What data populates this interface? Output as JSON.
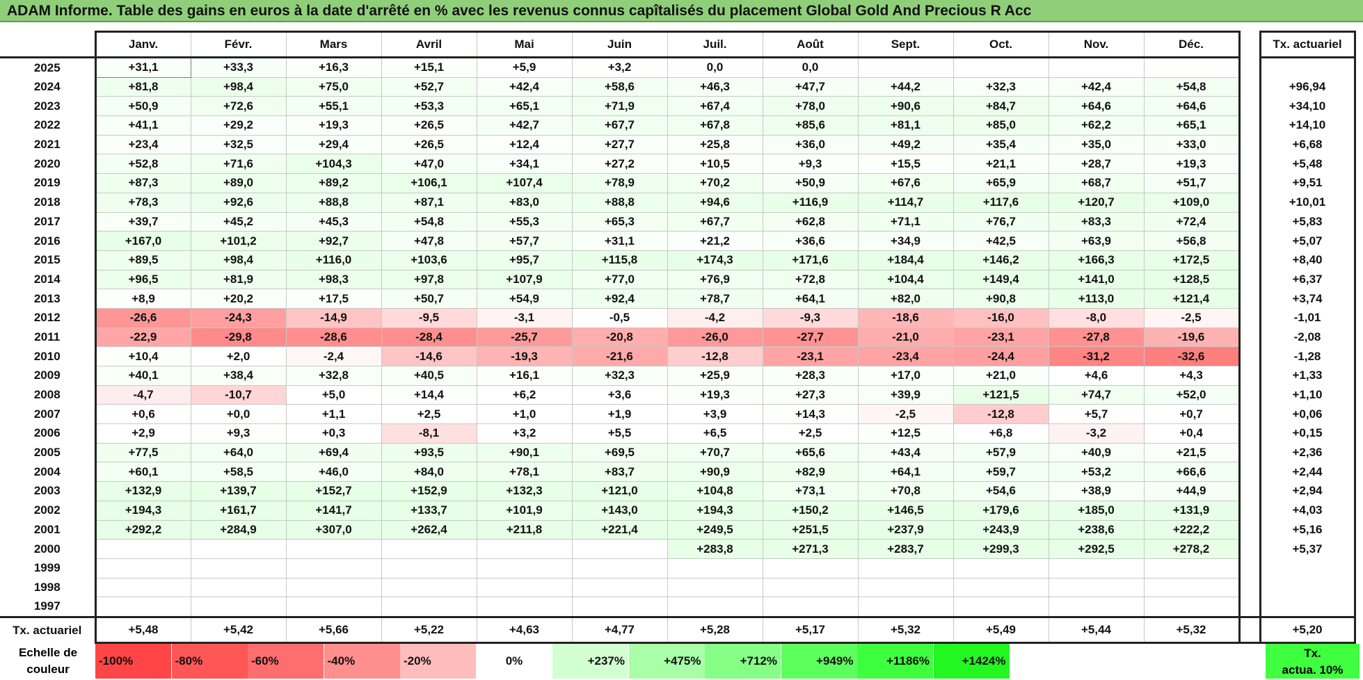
{
  "title": "ADAM Informe. Table des gains en euros à la date d'arrêté en % avec les revenus connus capîtalisés du placement Global Gold And Precious R Acc",
  "months": [
    "Janv.",
    "Févr.",
    "Mars",
    "Avril",
    "Mai",
    "Juin",
    "Juil.",
    "Août",
    "Sept.",
    "Oct.",
    "Nov.",
    "Déc."
  ],
  "annual_header": "Tx. actuariel",
  "rows": [
    {
      "year": "2025",
      "cells": [
        "+31,1",
        "+33,3",
        "+16,3",
        "+15,1",
        "+5,9",
        "+3,2",
        "0,0",
        "0,0",
        "",
        "",
        "",
        ""
      ],
      "annual": ""
    },
    {
      "year": "2024",
      "cells": [
        "+81,8",
        "+98,4",
        "+75,0",
        "+52,7",
        "+42,4",
        "+58,6",
        "+46,3",
        "+47,7",
        "+44,2",
        "+32,3",
        "+42,4",
        "+54,8"
      ],
      "annual": "+96,94"
    },
    {
      "year": "2023",
      "cells": [
        "+50,9",
        "+72,6",
        "+55,1",
        "+53,3",
        "+65,1",
        "+71,9",
        "+67,4",
        "+78,0",
        "+90,6",
        "+84,7",
        "+64,6",
        "+64,6"
      ],
      "annual": "+34,10"
    },
    {
      "year": "2022",
      "cells": [
        "+41,1",
        "+29,2",
        "+19,3",
        "+26,5",
        "+42,7",
        "+67,7",
        "+67,8",
        "+85,6",
        "+81,1",
        "+85,0",
        "+62,2",
        "+65,1"
      ],
      "annual": "+14,10"
    },
    {
      "year": "2021",
      "cells": [
        "+23,4",
        "+32,5",
        "+29,4",
        "+26,5",
        "+12,4",
        "+27,7",
        "+25,8",
        "+36,0",
        "+49,2",
        "+35,4",
        "+35,0",
        "+33,0"
      ],
      "annual": "+6,68"
    },
    {
      "year": "2020",
      "cells": [
        "+52,8",
        "+71,6",
        "+104,3",
        "+47,0",
        "+34,1",
        "+27,2",
        "+10,5",
        "+9,3",
        "+15,5",
        "+21,1",
        "+28,7",
        "+19,3"
      ],
      "annual": "+5,48"
    },
    {
      "year": "2019",
      "cells": [
        "+87,3",
        "+89,0",
        "+89,2",
        "+106,1",
        "+107,4",
        "+78,9",
        "+70,2",
        "+50,9",
        "+67,6",
        "+65,9",
        "+68,7",
        "+51,7"
      ],
      "annual": "+9,51"
    },
    {
      "year": "2018",
      "cells": [
        "+78,3",
        "+92,6",
        "+88,8",
        "+87,1",
        "+83,0",
        "+88,8",
        "+94,6",
        "+116,9",
        "+114,7",
        "+117,6",
        "+120,7",
        "+109,0"
      ],
      "annual": "+10,01"
    },
    {
      "year": "2017",
      "cells": [
        "+39,7",
        "+45,2",
        "+45,3",
        "+54,8",
        "+55,3",
        "+65,3",
        "+67,7",
        "+62,8",
        "+71,1",
        "+76,7",
        "+83,3",
        "+72,4"
      ],
      "annual": "+5,83"
    },
    {
      "year": "2016",
      "cells": [
        "+167,0",
        "+101,2",
        "+92,7",
        "+47,8",
        "+57,7",
        "+31,1",
        "+21,2",
        "+36,6",
        "+34,9",
        "+42,5",
        "+63,9",
        "+56,8"
      ],
      "annual": "+5,07"
    },
    {
      "year": "2015",
      "cells": [
        "+89,5",
        "+98,4",
        "+116,0",
        "+103,6",
        "+95,7",
        "+115,8",
        "+174,3",
        "+171,6",
        "+184,4",
        "+146,2",
        "+166,3",
        "+172,5"
      ],
      "annual": "+8,40"
    },
    {
      "year": "2014",
      "cells": [
        "+96,5",
        "+81,9",
        "+98,3",
        "+97,8",
        "+107,9",
        "+77,0",
        "+76,9",
        "+72,8",
        "+104,4",
        "+149,4",
        "+141,0",
        "+128,5"
      ],
      "annual": "+6,37"
    },
    {
      "year": "2013",
      "cells": [
        "+8,9",
        "+20,2",
        "+17,5",
        "+50,7",
        "+54,9",
        "+92,4",
        "+78,7",
        "+64,1",
        "+82,0",
        "+90,8",
        "+113,0",
        "+121,4"
      ],
      "annual": "+3,74"
    },
    {
      "year": "2012",
      "cells": [
        "-26,6",
        "-24,3",
        "-14,9",
        "-9,5",
        "-3,1",
        "-0,5",
        "-4,2",
        "-9,3",
        "-18,6",
        "-16,0",
        "-8,0",
        "-2,5"
      ],
      "annual": "-1,01"
    },
    {
      "year": "2011",
      "cells": [
        "-22,9",
        "-29,8",
        "-28,6",
        "-28,4",
        "-25,7",
        "-20,8",
        "-26,0",
        "-27,7",
        "-21,0",
        "-23,1",
        "-27,8",
        "-19,6"
      ],
      "annual": "-2,08"
    },
    {
      "year": "2010",
      "cells": [
        "+10,4",
        "+2,0",
        "-2,4",
        "-14,6",
        "-19,3",
        "-21,6",
        "-12,8",
        "-23,1",
        "-23,4",
        "-24,4",
        "-31,2",
        "-32,6"
      ],
      "annual": "-1,28"
    },
    {
      "year": "2009",
      "cells": [
        "+40,1",
        "+38,4",
        "+32,8",
        "+40,5",
        "+16,1",
        "+32,3",
        "+25,9",
        "+28,3",
        "+17,0",
        "+21,0",
        "+4,6",
        "+4,3"
      ],
      "annual": "+1,33"
    },
    {
      "year": "2008",
      "cells": [
        "-4,7",
        "-10,7",
        "+5,0",
        "+14,4",
        "+6,2",
        "+3,6",
        "+19,3",
        "+27,3",
        "+39,9",
        "+121,5",
        "+74,7",
        "+52,0"
      ],
      "annual": "+1,10"
    },
    {
      "year": "2007",
      "cells": [
        "+0,6",
        "+0,0",
        "+1,1",
        "+2,5",
        "+1,0",
        "+1,9",
        "+3,9",
        "+14,3",
        "-2,5",
        "-12,8",
        "+5,7",
        "+0,7"
      ],
      "annual": "+0,06"
    },
    {
      "year": "2006",
      "cells": [
        "+2,9",
        "+9,3",
        "+0,3",
        "-8,1",
        "+3,2",
        "+5,5",
        "+6,5",
        "+2,5",
        "+12,5",
        "+6,8",
        "-3,2",
        "+0,4"
      ],
      "annual": "+0,15"
    },
    {
      "year": "2005",
      "cells": [
        "+77,5",
        "+64,0",
        "+69,4",
        "+93,5",
        "+90,1",
        "+69,5",
        "+70,7",
        "+65,6",
        "+43,4",
        "+57,9",
        "+40,9",
        "+21,5"
      ],
      "annual": "+2,36"
    },
    {
      "year": "2004",
      "cells": [
        "+60,1",
        "+58,5",
        "+46,0",
        "+84,0",
        "+78,1",
        "+83,7",
        "+90,9",
        "+82,9",
        "+64,1",
        "+59,7",
        "+53,2",
        "+66,6"
      ],
      "annual": "+2,44"
    },
    {
      "year": "2003",
      "cells": [
        "+132,9",
        "+139,7",
        "+152,7",
        "+152,9",
        "+132,3",
        "+121,0",
        "+104,8",
        "+73,1",
        "+70,8",
        "+54,6",
        "+38,9",
        "+44,9"
      ],
      "annual": "+2,94"
    },
    {
      "year": "2002",
      "cells": [
        "+194,3",
        "+161,7",
        "+141,7",
        "+133,7",
        "+101,9",
        "+143,0",
        "+194,3",
        "+150,2",
        "+146,5",
        "+179,6",
        "+185,0",
        "+131,9"
      ],
      "annual": "+4,03"
    },
    {
      "year": "2001",
      "cells": [
        "+292,2",
        "+284,9",
        "+307,0",
        "+262,4",
        "+211,8",
        "+221,4",
        "+249,5",
        "+251,5",
        "+237,9",
        "+243,9",
        "+238,6",
        "+222,2"
      ],
      "annual": "+5,16"
    },
    {
      "year": "2000",
      "cells": [
        "",
        "",
        "",
        "",
        "",
        "",
        "+283,8",
        "+271,3",
        "+283,7",
        "+299,3",
        "+292,5",
        "+278,2"
      ],
      "annual": "+5,37"
    },
    {
      "year": "1999",
      "cells": [
        "",
        "",
        "",
        "",
        "",
        "",
        "",
        "",
        "",
        "",
        "",
        ""
      ],
      "annual": ""
    },
    {
      "year": "1998",
      "cells": [
        "",
        "",
        "",
        "",
        "",
        "",
        "",
        "",
        "",
        "",
        "",
        ""
      ],
      "annual": ""
    },
    {
      "year": "1997",
      "cells": [
        "",
        "",
        "",
        "",
        "",
        "",
        "",
        "",
        "",
        "",
        "",
        ""
      ],
      "annual": ""
    }
  ],
  "footer": {
    "label": "Tx. actuariel",
    "cells": [
      "+5,48",
      "+5,42",
      "+5,66",
      "+5,22",
      "+4,63",
      "+4,77",
      "+5,28",
      "+5,17",
      "+5,32",
      "+5,49",
      "+5,44",
      "+5,32"
    ],
    "annual": "+5,20"
  },
  "scale": {
    "label_line1": "Echelle de",
    "label_line2": "couleur",
    "steps": [
      {
        "label": "-100%",
        "color": "#ff4545",
        "kind": "neg"
      },
      {
        "label": "-80%",
        "color": "#ff5656",
        "kind": "neg"
      },
      {
        "label": "-60%",
        "color": "#ff6e6e",
        "kind": "neg"
      },
      {
        "label": "-40%",
        "color": "#ff8e8e",
        "kind": "neg"
      },
      {
        "label": "-20%",
        "color": "#ffbcbc",
        "kind": "neg"
      },
      {
        "label": "0%",
        "color": "#ffffff",
        "kind": "zero"
      },
      {
        "label": "+237%",
        "color": "#d2ffd2",
        "kind": "pos"
      },
      {
        "label": "+475%",
        "color": "#a8ffa8",
        "kind": "pos"
      },
      {
        "label": "+712%",
        "color": "#85ff85",
        "kind": "pos"
      },
      {
        "label": "+949%",
        "color": "#5dff5d",
        "kind": "pos"
      },
      {
        "label": "+1186%",
        "color": "#3eff3e",
        "kind": "pos"
      },
      {
        "label": "+1424%",
        "color": "#22f722",
        "kind": "pos"
      }
    ],
    "annual_line1": "Tx.",
    "annual_line2": "actua. 10%",
    "annual_color": "#3fff3f"
  }
}
